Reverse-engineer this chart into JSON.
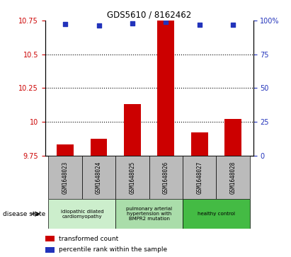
{
  "title": "GDS5610 / 8162462",
  "samples": [
    "GSM1648023",
    "GSM1648024",
    "GSM1648025",
    "GSM1648026",
    "GSM1648027",
    "GSM1648028"
  ],
  "bar_values": [
    9.832,
    9.874,
    10.132,
    10.748,
    9.922,
    10.02
  ],
  "bar_baseline": 9.75,
  "bar_color": "#cc0000",
  "dot_values": [
    10.725,
    10.715,
    10.728,
    10.742,
    10.718,
    10.72
  ],
  "dot_color": "#2233bb",
  "ylim_left": [
    9.75,
    10.75
  ],
  "ylim_right": [
    0,
    100
  ],
  "yticks_left": [
    9.75,
    10.0,
    10.25,
    10.5,
    10.75
  ],
  "yticks_right": [
    0,
    25,
    50,
    75,
    100
  ],
  "ytick_labels_left": [
    "9.75",
    "10",
    "10.25",
    "10.5",
    "10.75"
  ],
  "ytick_labels_right": [
    "0",
    "25",
    "50",
    "75",
    "100%"
  ],
  "grid_lines": [
    10.0,
    10.25,
    10.5
  ],
  "disease_groups": [
    {
      "label": "idiopathic dilated\ncardiomyopathy",
      "indices": [
        0,
        1
      ],
      "color": "#cceecc"
    },
    {
      "label": "pulmonary arterial\nhypertension with\nBMPR2 mutation",
      "indices": [
        2,
        3
      ],
      "color": "#aaddaa"
    },
    {
      "label": "healthy control",
      "indices": [
        4,
        5
      ],
      "color": "#44bb44"
    }
  ],
  "legend_bar_label": "transformed count",
  "legend_dot_label": "percentile rank within the sample",
  "disease_state_label": "disease state",
  "left_tick_color": "#cc0000",
  "right_tick_color": "#2233bb",
  "xticklabel_bg": "#bbbbbb",
  "bar_width": 0.5
}
